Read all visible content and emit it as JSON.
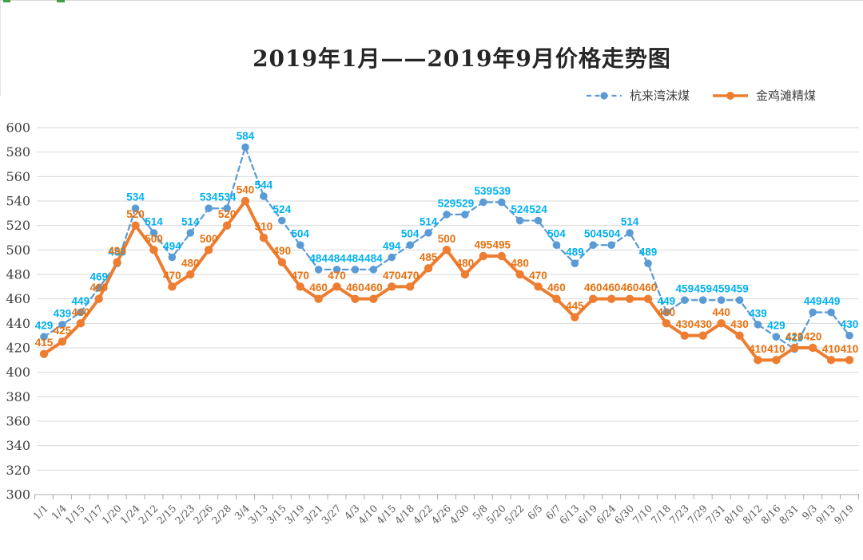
{
  "chart_data": {
    "type": "line",
    "title": "2019年1月——2019年9月价格走势图",
    "categories": [
      "1/1",
      "1/4",
      "1/15",
      "1/17",
      "1/20",
      "1/24",
      "2/12",
      "2/15",
      "2/23",
      "2/26",
      "2/28",
      "3/4",
      "3/13",
      "3/15",
      "3/19",
      "3/21",
      "3/27",
      "4/3",
      "4/10",
      "4/15",
      "4/18",
      "4/22",
      "4/26",
      "4/30",
      "5/8",
      "5/20",
      "5/22",
      "6/5",
      "6/7",
      "6/13",
      "6/19",
      "6/24",
      "6/30",
      "7/10",
      "7/18",
      "7/23",
      "7/29",
      "7/31",
      "8/10",
      "8/12",
      "8/16",
      "8/31",
      "9/3",
      "9/13",
      "9/19"
    ],
    "series": [
      {
        "name": "杭来湾沫煤",
        "style": "dashed",
        "color": "#5B9BD5",
        "label_color": "#00B0F0",
        "values": [
          429,
          439,
          449,
          469,
          489,
          534,
          514,
          494,
          514,
          534,
          534,
          584,
          544,
          524,
          504,
          484,
          484,
          484,
          484,
          494,
          504,
          514,
          529,
          529,
          539,
          539,
          524,
          524,
          504,
          489,
          504,
          504,
          514,
          489,
          449,
          459,
          459,
          459,
          459,
          439,
          429,
          419,
          449,
          449,
          430
        ]
      },
      {
        "name": "金鸡滩精煤",
        "style": "solid",
        "color": "#ED7D31",
        "label_color": "#E8700F",
        "values": [
          415,
          425,
          440,
          460,
          490,
          520,
          500,
          470,
          480,
          500,
          520,
          540,
          510,
          490,
          470,
          460,
          470,
          460,
          460,
          470,
          470,
          485,
          500,
          480,
          495,
          495,
          480,
          470,
          460,
          445,
          460,
          460,
          460,
          460,
          440,
          430,
          430,
          440,
          430,
          410,
          410,
          420,
          420,
          410,
          410
        ]
      }
    ],
    "ylim": [
      300,
      600
    ],
    "ytick_step": 20,
    "yticks": [
      300,
      320,
      340,
      360,
      380,
      400,
      420,
      440,
      460,
      480,
      500,
      520,
      540,
      560,
      580,
      600
    ],
    "grid": true,
    "data_labels": true,
    "legend_position": "top-right",
    "x_label_rotation": -45,
    "colors": {
      "gridline": "#D9D9D9",
      "axis_line": "#ABABAB",
      "x_tick_label": "#595959",
      "y_tick_label": "#3F3F3F"
    }
  }
}
